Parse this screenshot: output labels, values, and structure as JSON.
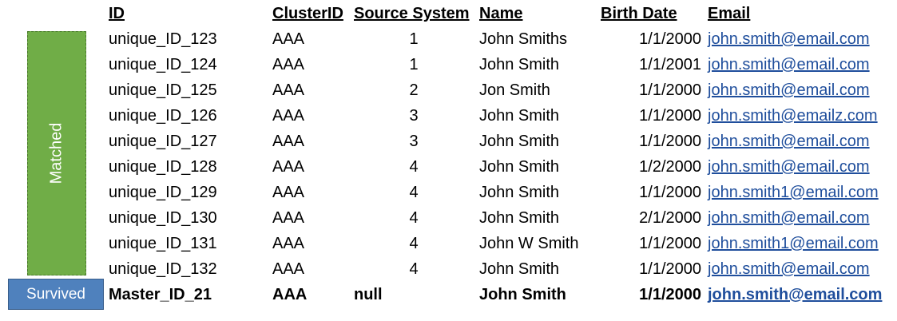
{
  "labels": {
    "matched": "Matched",
    "survived": "Survived"
  },
  "columns": [
    "ID",
    "ClusterID",
    "Source System",
    "Name",
    "Birth Date",
    "Email"
  ],
  "rows": [
    [
      "unique_ID_123",
      "AAA",
      "1",
      "John Smiths",
      "1/1/2000",
      "john.smith@email.com"
    ],
    [
      "unique_ID_124",
      "AAA",
      "1",
      "John Smith",
      "1/1/2001",
      "john.smith@email.com"
    ],
    [
      "unique_ID_125",
      "AAA",
      "2",
      "Jon Smith",
      "1/1/2000",
      "john.smith@email.com"
    ],
    [
      "unique_ID_126",
      "AAA",
      "3",
      "John Smith",
      "1/1/2000",
      "john.smith@emailz.com"
    ],
    [
      "unique_ID_127",
      "AAA",
      "3",
      "John Smith",
      "1/1/2000",
      "john.smith@email.com"
    ],
    [
      "unique_ID_128",
      "AAA",
      "4",
      "John Smith",
      "1/2/2000",
      "john.smith@email.com"
    ],
    [
      "unique_ID_129",
      "AAA",
      "4",
      "John Smith",
      "1/1/2000",
      "john.smith1@email.com"
    ],
    [
      "unique_ID_130",
      "AAA",
      "4",
      "John Smith",
      "2/1/2000",
      "john.smith@email.com"
    ],
    [
      "unique_ID_131",
      "AAA",
      "4",
      "John W  Smith",
      "1/1/2000",
      "john.smith1@email.com"
    ],
    [
      "unique_ID_132",
      "AAA",
      "4",
      "John Smith",
      "1/1/2000",
      "john.smith@email.com"
    ]
  ],
  "master": [
    "Master_ID_21",
    "AAA",
    "null",
    "John Smith",
    "1/1/2000",
    "john.smith@email.com"
  ],
  "colors": {
    "matched": "#70ad47",
    "survived": "#4f81bd",
    "link": "#1f4e9c"
  }
}
